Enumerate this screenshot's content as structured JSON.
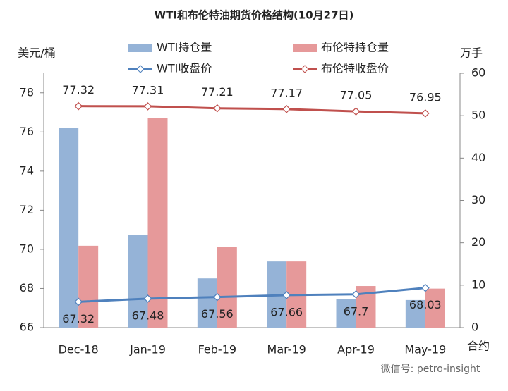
{
  "chart_data": {
    "type": "combo",
    "title": "WTI和布伦特油期货价格结构(10月27日)",
    "y_label": "美元/桶",
    "y2_label": "万手",
    "x_label": "合约",
    "watermark": "微信号: petro-insight",
    "categories": [
      "Dec-18",
      "Jan-19",
      "Feb-19",
      "Mar-19",
      "Apr-19",
      "May-19"
    ],
    "ylim": [
      66,
      79
    ],
    "yticks": [
      66,
      68,
      70,
      72,
      74,
      76,
      78
    ],
    "y2lim": [
      0,
      60
    ],
    "y2ticks": [
      0,
      10,
      20,
      30,
      40,
      50,
      60
    ],
    "series": [
      {
        "name": "WTI持仓量",
        "type": "bar",
        "axis": "y2",
        "color": "#95b3d7",
        "values": [
          47.1,
          21.8,
          11.6,
          15.6,
          6.7,
          6.5
        ]
      },
      {
        "name": "布伦特持仓量",
        "type": "bar",
        "axis": "y2",
        "color": "#e6999a",
        "values": [
          19.3,
          49.4,
          19.1,
          15.6,
          9.8,
          9.2
        ]
      },
      {
        "name": "WTI收盘价",
        "type": "line",
        "color": "#4f81bd",
        "values": [
          67.32,
          67.48,
          67.56,
          67.66,
          67.7,
          68.03
        ]
      },
      {
        "name": "布伦特收盘价",
        "type": "line",
        "color": "#c0504d",
        "values": [
          77.32,
          77.31,
          77.21,
          77.17,
          77.05,
          76.95
        ]
      }
    ]
  }
}
